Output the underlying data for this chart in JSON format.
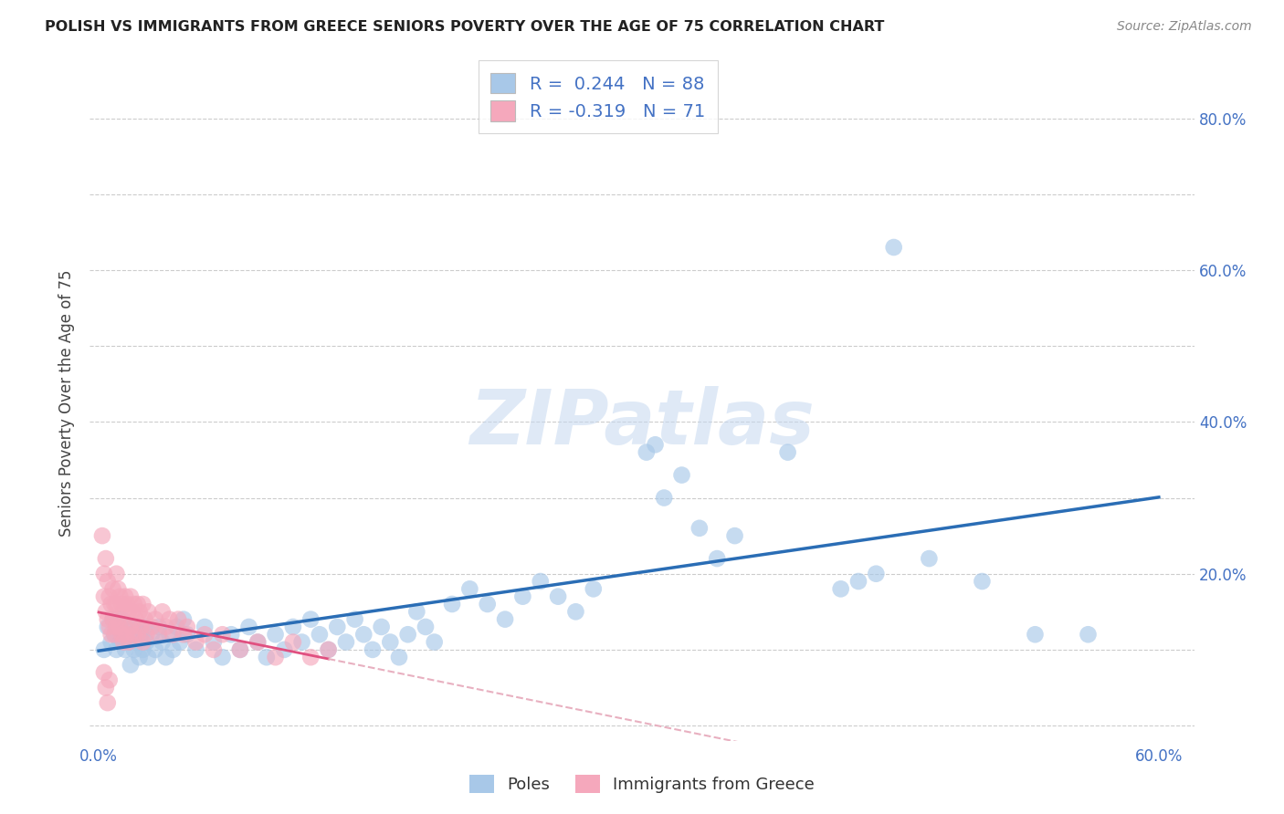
{
  "title": "POLISH VS IMMIGRANTS FROM GREECE SENIORS POVERTY OVER THE AGE OF 75 CORRELATION CHART",
  "source": "Source: ZipAtlas.com",
  "ylabel_label": "Seniors Poverty Over the Age of 75",
  "xlim": [
    -0.005,
    0.62
  ],
  "ylim": [
    -0.02,
    0.87
  ],
  "x_ticks": [
    0.0,
    0.1,
    0.2,
    0.3,
    0.4,
    0.5,
    0.6
  ],
  "x_tick_labels": [
    "0.0%",
    "",
    "",
    "",
    "",
    "",
    "60.0%"
  ],
  "y_ticks_right": [
    0.0,
    0.1,
    0.2,
    0.3,
    0.4,
    0.5,
    0.6,
    0.7,
    0.8
  ],
  "y_tick_labels_right": [
    "",
    "",
    "20.0%",
    "",
    "40.0%",
    "",
    "60.0%",
    "",
    "80.0%"
  ],
  "blue_color": "#a8c8e8",
  "blue_line_color": "#2a6db5",
  "pink_color": "#f5a8bc",
  "pink_line_color": "#e05080",
  "pink_dash_color": "#e8b0c0",
  "R_blue": 0.244,
  "N_blue": 88,
  "R_pink": -0.319,
  "N_pink": 71,
  "legend_label_blue": "Poles",
  "legend_label_pink": "Immigrants from Greece",
  "watermark": "ZIPatlas",
  "blue_points": [
    [
      0.003,
      0.1
    ],
    [
      0.005,
      0.13
    ],
    [
      0.007,
      0.11
    ],
    [
      0.008,
      0.14
    ],
    [
      0.009,
      0.12
    ],
    [
      0.01,
      0.1
    ],
    [
      0.011,
      0.13
    ],
    [
      0.012,
      0.11
    ],
    [
      0.013,
      0.14
    ],
    [
      0.014,
      0.12
    ],
    [
      0.015,
      0.1
    ],
    [
      0.016,
      0.13
    ],
    [
      0.017,
      0.11
    ],
    [
      0.018,
      0.08
    ],
    [
      0.019,
      0.12
    ],
    [
      0.02,
      0.1
    ],
    [
      0.021,
      0.13
    ],
    [
      0.022,
      0.11
    ],
    [
      0.023,
      0.09
    ],
    [
      0.024,
      0.12
    ],
    [
      0.025,
      0.1
    ],
    [
      0.026,
      0.13
    ],
    [
      0.027,
      0.11
    ],
    [
      0.028,
      0.09
    ],
    [
      0.03,
      0.12
    ],
    [
      0.032,
      0.1
    ],
    [
      0.034,
      0.13
    ],
    [
      0.036,
      0.11
    ],
    [
      0.038,
      0.09
    ],
    [
      0.04,
      0.12
    ],
    [
      0.042,
      0.1
    ],
    [
      0.044,
      0.13
    ],
    [
      0.046,
      0.11
    ],
    [
      0.048,
      0.14
    ],
    [
      0.05,
      0.12
    ],
    [
      0.055,
      0.1
    ],
    [
      0.06,
      0.13
    ],
    [
      0.065,
      0.11
    ],
    [
      0.07,
      0.09
    ],
    [
      0.075,
      0.12
    ],
    [
      0.08,
      0.1
    ],
    [
      0.085,
      0.13
    ],
    [
      0.09,
      0.11
    ],
    [
      0.095,
      0.09
    ],
    [
      0.1,
      0.12
    ],
    [
      0.105,
      0.1
    ],
    [
      0.11,
      0.13
    ],
    [
      0.115,
      0.11
    ],
    [
      0.12,
      0.14
    ],
    [
      0.125,
      0.12
    ],
    [
      0.13,
      0.1
    ],
    [
      0.135,
      0.13
    ],
    [
      0.14,
      0.11
    ],
    [
      0.145,
      0.14
    ],
    [
      0.15,
      0.12
    ],
    [
      0.155,
      0.1
    ],
    [
      0.16,
      0.13
    ],
    [
      0.165,
      0.11
    ],
    [
      0.17,
      0.09
    ],
    [
      0.175,
      0.12
    ],
    [
      0.18,
      0.15
    ],
    [
      0.185,
      0.13
    ],
    [
      0.19,
      0.11
    ],
    [
      0.2,
      0.16
    ],
    [
      0.21,
      0.18
    ],
    [
      0.22,
      0.16
    ],
    [
      0.23,
      0.14
    ],
    [
      0.24,
      0.17
    ],
    [
      0.25,
      0.19
    ],
    [
      0.26,
      0.17
    ],
    [
      0.27,
      0.15
    ],
    [
      0.28,
      0.18
    ],
    [
      0.31,
      0.36
    ],
    [
      0.315,
      0.37
    ],
    [
      0.32,
      0.3
    ],
    [
      0.33,
      0.33
    ],
    [
      0.34,
      0.26
    ],
    [
      0.35,
      0.22
    ],
    [
      0.36,
      0.25
    ],
    [
      0.39,
      0.36
    ],
    [
      0.42,
      0.18
    ],
    [
      0.43,
      0.19
    ],
    [
      0.44,
      0.2
    ],
    [
      0.45,
      0.63
    ],
    [
      0.47,
      0.22
    ],
    [
      0.5,
      0.19
    ],
    [
      0.53,
      0.12
    ],
    [
      0.56,
      0.12
    ]
  ],
  "pink_points": [
    [
      0.002,
      0.25
    ],
    [
      0.003,
      0.2
    ],
    [
      0.003,
      0.17
    ],
    [
      0.004,
      0.22
    ],
    [
      0.004,
      0.15
    ],
    [
      0.005,
      0.19
    ],
    [
      0.005,
      0.14
    ],
    [
      0.006,
      0.17
    ],
    [
      0.006,
      0.13
    ],
    [
      0.007,
      0.16
    ],
    [
      0.007,
      0.12
    ],
    [
      0.008,
      0.18
    ],
    [
      0.008,
      0.14
    ],
    [
      0.009,
      0.16
    ],
    [
      0.009,
      0.12
    ],
    [
      0.01,
      0.2
    ],
    [
      0.01,
      0.16
    ],
    [
      0.01,
      0.13
    ],
    [
      0.011,
      0.18
    ],
    [
      0.011,
      0.14
    ],
    [
      0.012,
      0.17
    ],
    [
      0.012,
      0.13
    ],
    [
      0.013,
      0.16
    ],
    [
      0.013,
      0.12
    ],
    [
      0.014,
      0.15
    ],
    [
      0.014,
      0.11
    ],
    [
      0.015,
      0.17
    ],
    [
      0.015,
      0.13
    ],
    [
      0.016,
      0.16
    ],
    [
      0.016,
      0.12
    ],
    [
      0.017,
      0.15
    ],
    [
      0.017,
      0.11
    ],
    [
      0.018,
      0.17
    ],
    [
      0.018,
      0.13
    ],
    [
      0.019,
      0.15
    ],
    [
      0.02,
      0.16
    ],
    [
      0.02,
      0.12
    ],
    [
      0.021,
      0.14
    ],
    [
      0.022,
      0.16
    ],
    [
      0.022,
      0.12
    ],
    [
      0.023,
      0.15
    ],
    [
      0.024,
      0.13
    ],
    [
      0.025,
      0.16
    ],
    [
      0.025,
      0.11
    ],
    [
      0.026,
      0.14
    ],
    [
      0.027,
      0.12
    ],
    [
      0.028,
      0.15
    ],
    [
      0.03,
      0.13
    ],
    [
      0.032,
      0.14
    ],
    [
      0.034,
      0.12
    ],
    [
      0.036,
      0.15
    ],
    [
      0.038,
      0.13
    ],
    [
      0.04,
      0.14
    ],
    [
      0.042,
      0.12
    ],
    [
      0.045,
      0.14
    ],
    [
      0.048,
      0.12
    ],
    [
      0.05,
      0.13
    ],
    [
      0.055,
      0.11
    ],
    [
      0.06,
      0.12
    ],
    [
      0.065,
      0.1
    ],
    [
      0.07,
      0.12
    ],
    [
      0.08,
      0.1
    ],
    [
      0.09,
      0.11
    ],
    [
      0.1,
      0.09
    ],
    [
      0.11,
      0.11
    ],
    [
      0.12,
      0.09
    ],
    [
      0.13,
      0.1
    ],
    [
      0.003,
      0.07
    ],
    [
      0.004,
      0.05
    ],
    [
      0.005,
      0.03
    ],
    [
      0.006,
      0.06
    ]
  ]
}
